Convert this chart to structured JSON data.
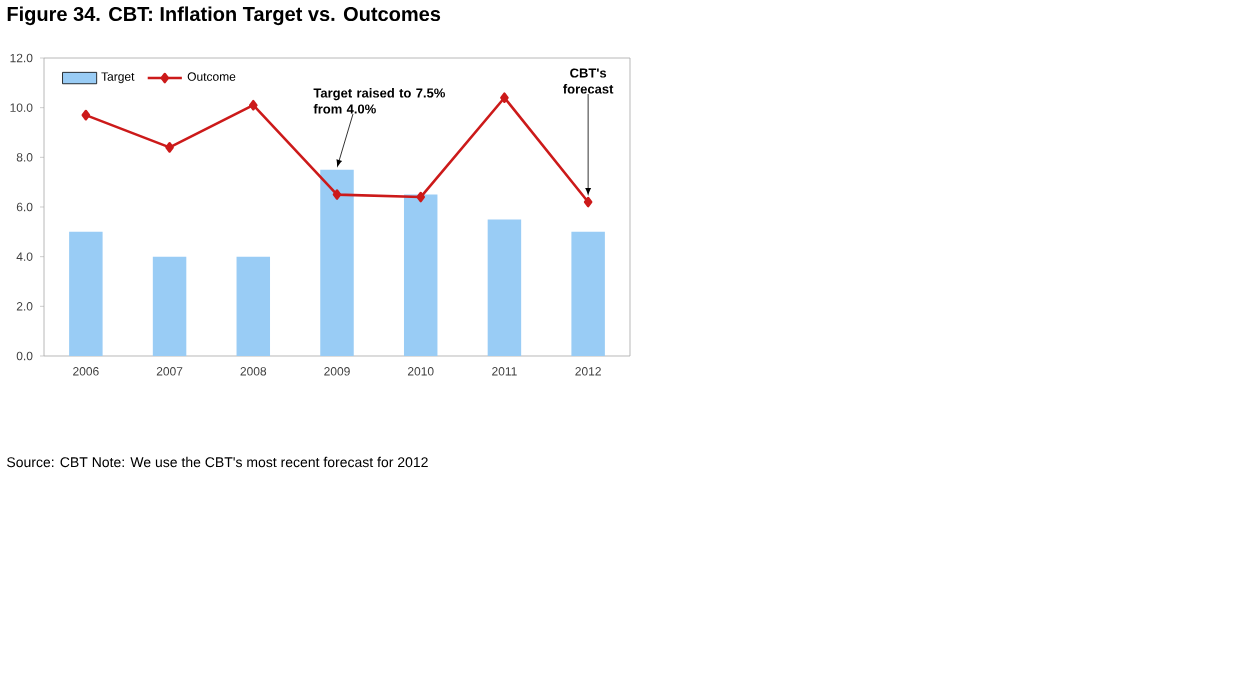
{
  "chart_data": {
    "type": "bar",
    "title": "Figure 34. CBT: Inflation Target vs. Outcomes",
    "categories": [
      "2006",
      "2007",
      "2008",
      "2009",
      "2010",
      "2011",
      "2012"
    ],
    "series": [
      {
        "name": "Target",
        "color": "#99ccf5",
        "values": [
          5,
          4,
          4,
          7.5,
          6.5,
          5.5,
          5
        ]
      },
      {
        "name": "Outcome",
        "type": "line",
        "color": "#cc1a1a",
        "marker": "diamond",
        "values": [
          9.7,
          8.4,
          10.1,
          6.5,
          6.4,
          10.4,
          6.2
        ]
      }
    ],
    "ylim": [
      0,
      12
    ],
    "yticks": [
      {
        "value": 0,
        "label": "0.0"
      },
      {
        "value": 2,
        "label": "2.0"
      },
      {
        "value": 4,
        "label": "4.0"
      },
      {
        "value": 6,
        "label": "6.0"
      },
      {
        "value": 8,
        "label": "8.0"
      },
      {
        "value": 10,
        "label": "10.0"
      },
      {
        "value": 12,
        "label": "12.0"
      }
    ],
    "legend": "top left",
    "annotations": [
      {
        "text": "Target raised to 7.5% from 4.0%",
        "x": "2009",
        "y": 7.5
      },
      {
        "text": "CBT's forecast",
        "x": "2012",
        "y": 6.2
      },
      "Source: CBT Note: We use the CBT's most recent forecast for 2012"
    ]
  }
}
